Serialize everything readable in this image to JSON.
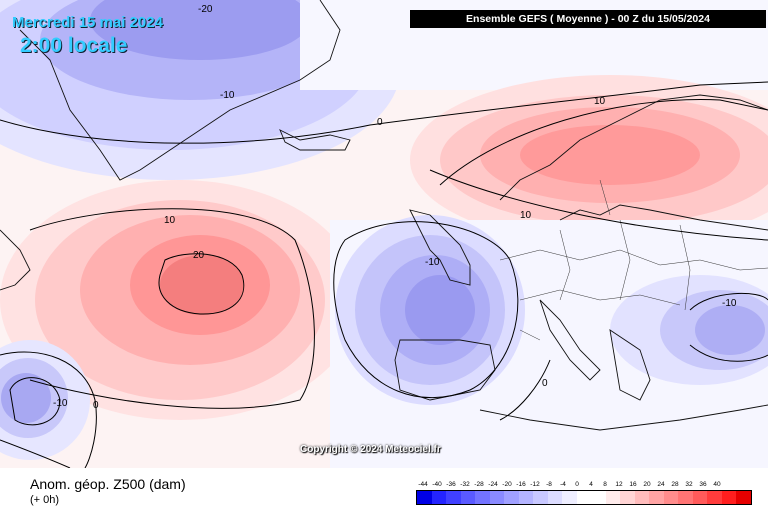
{
  "header": {
    "date": "Mercredi 15 mai 2024",
    "time": "2:00 locale",
    "banner": "Ensemble GEFS  ( Moyenne )  -  00 Z du 15/05/2024"
  },
  "map": {
    "copyright": "Copyright © 2024 Meteociel.fr",
    "contour_labels": [
      "-20",
      "-10",
      "0",
      "10",
      "20",
      "10",
      "-10",
      "10",
      "0",
      "-10",
      "-10",
      "0"
    ]
  },
  "legend": {
    "title": "Anom. géop. Z500 (dam)",
    "subtitle": "(+ 0h)",
    "ticks": [
      "-44",
      "-40",
      "-36",
      "-32",
      "-28",
      "-24",
      "-20",
      "-16",
      "-12",
      "-8",
      "-4",
      "0",
      "4",
      "8",
      "12",
      "16",
      "20",
      "24",
      "28",
      "32",
      "36",
      "40"
    ],
    "colors": [
      "#0000e6",
      "#2424ff",
      "#4040ff",
      "#5a5aff",
      "#7373ff",
      "#8a8aff",
      "#a0a0ff",
      "#b4b4ff",
      "#c8c8ff",
      "#dcdcff",
      "#eeeeff",
      "#ffffff",
      "#ffffff",
      "#ffecec",
      "#ffd4d4",
      "#ffbcbc",
      "#ffa4a4",
      "#ff8c8c",
      "#ff7474",
      "#ff5a5a",
      "#ff3c3c",
      "#ff1e1e",
      "#e60000"
    ]
  }
}
